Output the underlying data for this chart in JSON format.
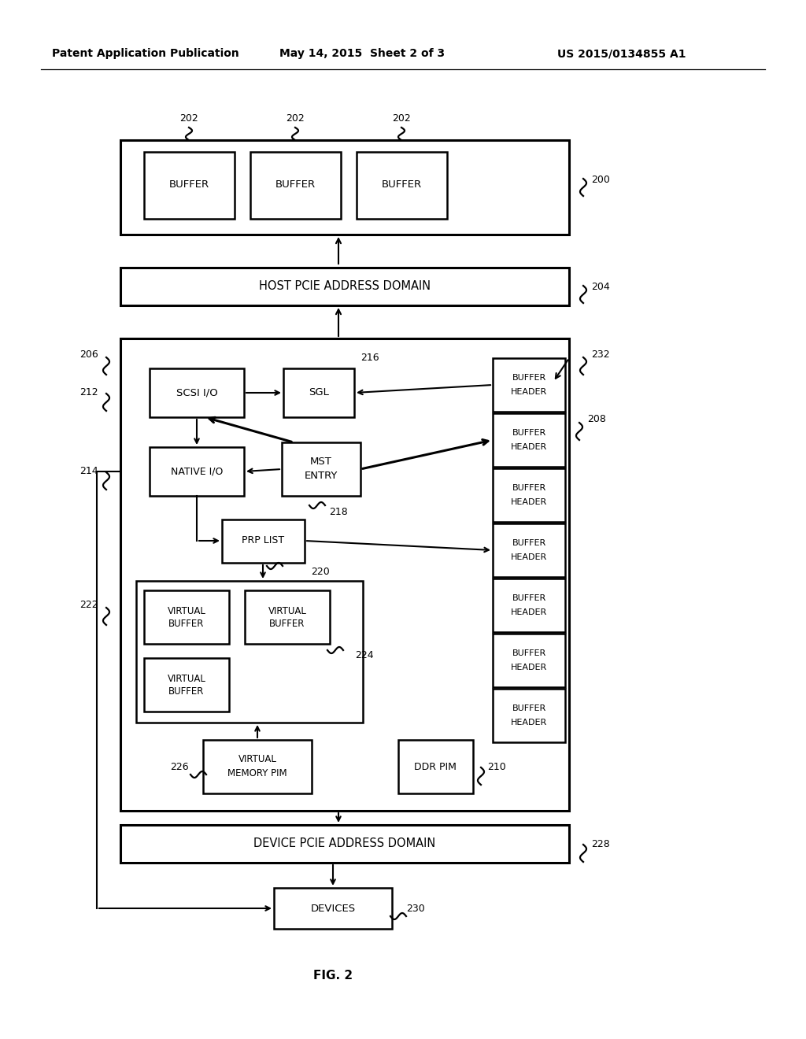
{
  "bg": "#ffffff",
  "header_left": "Patent Application Publication",
  "header_mid": "May 14, 2015  Sheet 2 of 3",
  "header_right": "US 2015/0134855 A1",
  "fig_caption": "FIG. 2"
}
